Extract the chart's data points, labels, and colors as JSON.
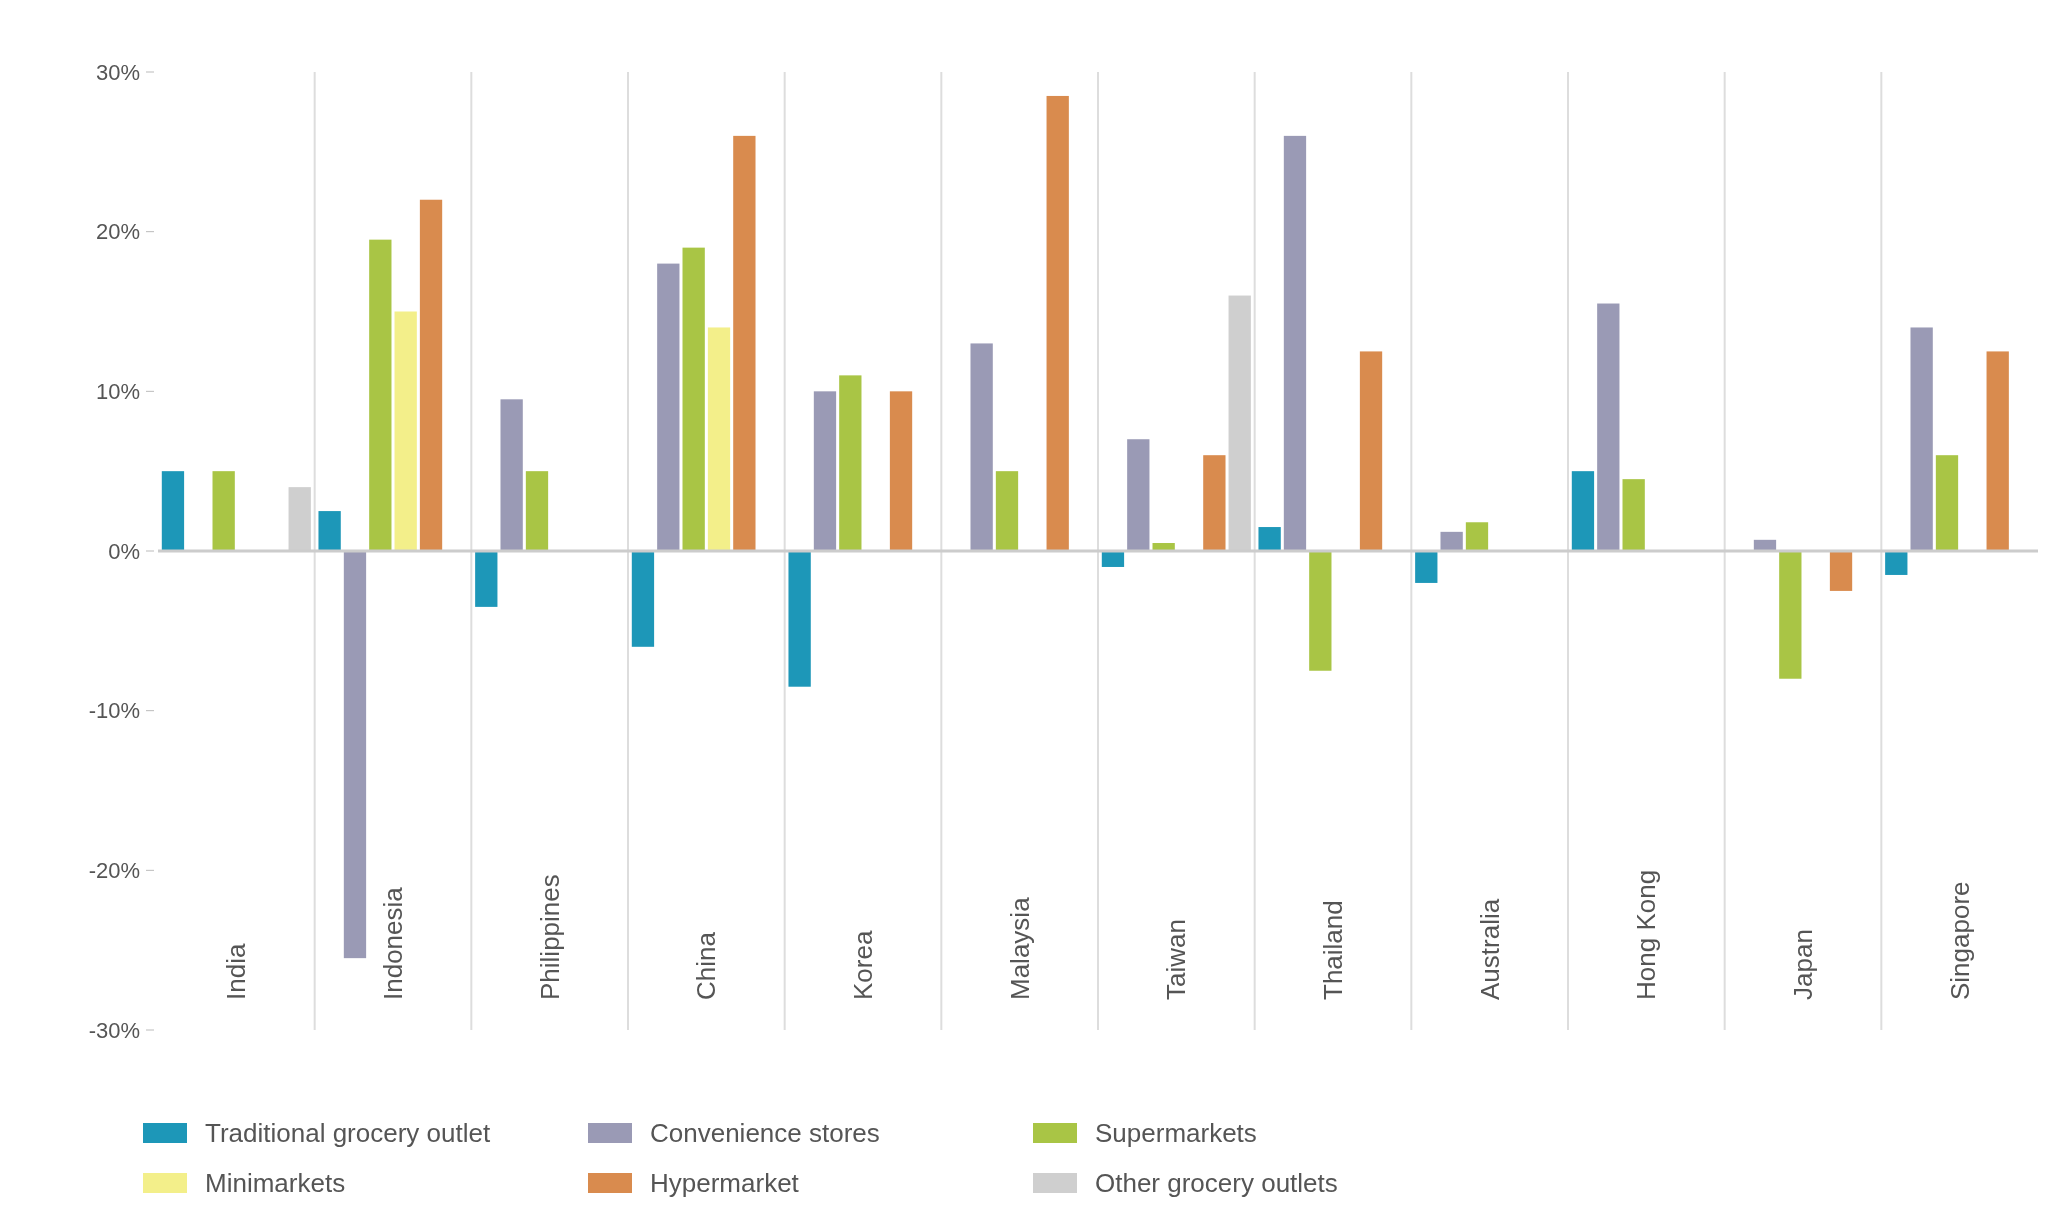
{
  "chart_data": {
    "type": "bar",
    "categories": [
      "India",
      "Indonesia",
      "Philippines",
      "China",
      "Korea",
      "Malaysia",
      "Taiwan",
      "Thailand",
      "Australia",
      "Hong Kong",
      "Japan",
      "Singapore"
    ],
    "series": [
      {
        "name": "Traditional grocery outlet",
        "color": "#1d97b8",
        "values": [
          5,
          2.5,
          -3.5,
          -6,
          -8.5,
          null,
          -1,
          1.5,
          -2,
          5,
          null,
          -1.5
        ]
      },
      {
        "name": "Convenience stores",
        "color": "#9a9ab5",
        "values": [
          null,
          -25.5,
          9.5,
          18,
          10,
          13,
          7,
          26,
          1.2,
          15.5,
          0.7,
          14
        ]
      },
      {
        "name": "Supermarkets",
        "color": "#a9c545",
        "values": [
          5,
          19.5,
          5,
          19,
          11,
          5,
          0.5,
          -7.5,
          1.8,
          4.5,
          -8,
          6
        ]
      },
      {
        "name": "Minimarkets",
        "color": "#f3ef8a",
        "values": [
          null,
          15,
          null,
          14,
          null,
          null,
          null,
          null,
          null,
          null,
          null,
          null
        ]
      },
      {
        "name": "Hypermarket",
        "color": "#d98b4e",
        "values": [
          null,
          22,
          null,
          26,
          10,
          28.5,
          6,
          12.5,
          null,
          null,
          -2.5,
          12.5
        ]
      },
      {
        "name": "Other grocery outlets",
        "color": "#cfcfcf",
        "values": [
          4,
          null,
          null,
          null,
          null,
          null,
          16,
          null,
          null,
          null,
          null,
          null
        ]
      }
    ],
    "ylim": [
      -30,
      30
    ],
    "yticks": [
      {
        "value": -30,
        "label": "-30%"
      },
      {
        "value": -20,
        "label": "-20%"
      },
      {
        "value": -10,
        "label": "-10%"
      },
      {
        "value": 0,
        "label": "0%"
      },
      {
        "value": 10,
        "label": "10%"
      },
      {
        "value": 20,
        "label": "20%"
      },
      {
        "value": 30,
        "label": "30%"
      }
    ],
    "grid": "x",
    "legend": "bottom"
  }
}
